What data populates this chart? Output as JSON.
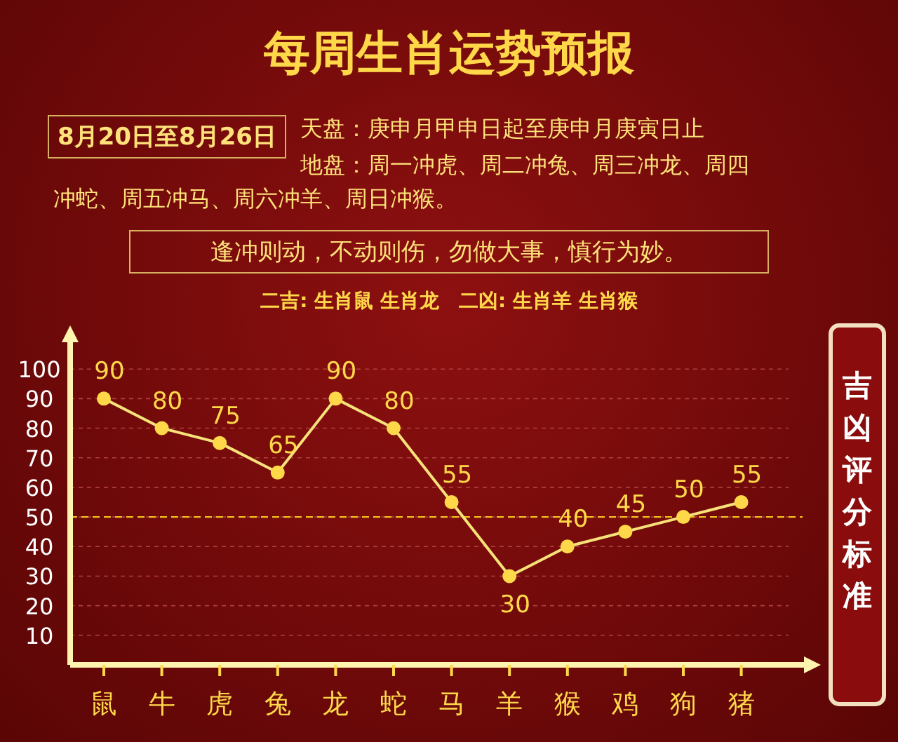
{
  "chart_data": {
    "type": "line",
    "title": "每周生肖运势预报",
    "ylabel": "吉凶评分标准",
    "annotations": [
      "8月20日至8月26日",
      "天盘：庚申月甲申日起至庚申月庚寅日止",
      "地盘：周一冲虎、周二冲兔、周三冲龙、周四冲蛇、周五冲马、周六冲羊、周日冲猴。",
      "逢冲则动，不动则伤，勿做大事，慎行为妙。",
      "二吉: 生肖鼠 生肖龙　二凶: 生肖羊 生肖猴"
    ],
    "categories": [
      "鼠",
      "牛",
      "虎",
      "兔",
      "龙",
      "蛇",
      "马",
      "羊",
      "猴",
      "鸡",
      "狗",
      "猪"
    ],
    "series": [
      {
        "color": "#f7e27a",
        "values": [
          90,
          80,
          75,
          65,
          90,
          80,
          55,
          30,
          40,
          45,
          50,
          55
        ]
      }
    ],
    "ylim": [
      0,
      110
    ],
    "yticks": [
      10,
      20,
      30,
      40,
      50,
      60,
      70,
      80,
      90,
      100
    ],
    "grid": "y",
    "marker": "circle",
    "data_labels": true,
    "ref_lines": [
      {
        "axis": "y",
        "value": 50,
        "color": "#f0c020",
        "line_style": "dashed"
      }
    ]
  }
}
